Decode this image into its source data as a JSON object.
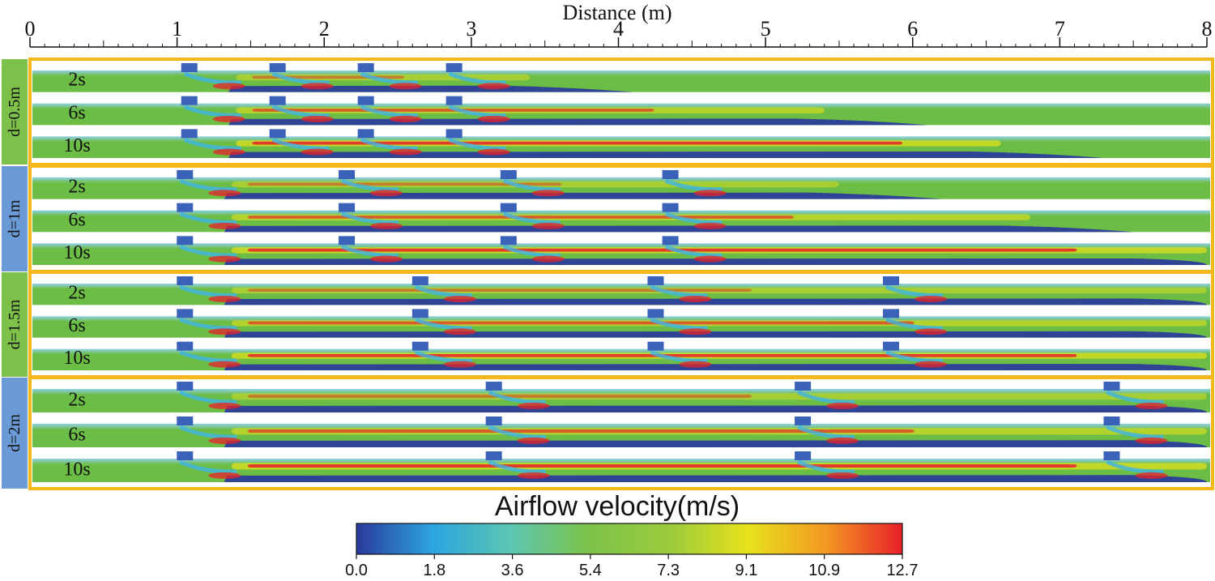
{
  "axis": {
    "title": "Distance (m)",
    "min": 0,
    "max": 8,
    "ticks": [
      "0",
      "1",
      "2",
      "3",
      "4",
      "5",
      "6",
      "7",
      "8"
    ]
  },
  "groups": [
    {
      "label": "d=0.5m",
      "spacing_m": 0.6,
      "color": "#7dc04a",
      "times": [
        "2s",
        "6s",
        "10s"
      ]
    },
    {
      "label": "d=1m",
      "spacing_m": 1.1,
      "color": "#6b9bd6",
      "times": [
        "2s",
        "6s",
        "10s"
      ]
    },
    {
      "label": "d=1.5m",
      "spacing_m": 1.6,
      "color": "#7dc04a",
      "times": [
        "2s",
        "6s",
        "10s"
      ]
    },
    {
      "label": "d=2m",
      "spacing_m": 2.1,
      "color": "#6b9bd6",
      "times": [
        "2s",
        "6s",
        "10s"
      ]
    }
  ],
  "obstacle_positions_m": [
    [
      1.05,
      1.65,
      2.25,
      2.85
    ],
    [
      1.02,
      2.12,
      3.22,
      4.32
    ],
    [
      1.02,
      2.62,
      4.22,
      5.82
    ],
    [
      1.02,
      3.12,
      5.22,
      7.32
    ]
  ],
  "jet_reach_m": [
    [
      3.4,
      5.4,
      6.6
    ],
    [
      5.5,
      6.8,
      8.0
    ],
    [
      8.0,
      8.0,
      8.0
    ],
    [
      8.0,
      8.0,
      8.0
    ]
  ],
  "colorbar": {
    "title": "Airflow velocity(m/s)",
    "min": 0.0,
    "max": 12.7,
    "ticks": [
      "0.0",
      "1.8",
      "3.6",
      "5.4",
      "7.3",
      "9.1",
      "10.9",
      "12.7"
    ],
    "stops": [
      {
        "value": 0.0,
        "color": "#2a3a9c"
      },
      {
        "value": 1.8,
        "color": "#2da6e0"
      },
      {
        "value": 3.6,
        "color": "#5cc6b0"
      },
      {
        "value": 5.4,
        "color": "#7cc24a"
      },
      {
        "value": 7.3,
        "color": "#9ccb3c"
      },
      {
        "value": 9.1,
        "color": "#e6e21c"
      },
      {
        "value": 10.9,
        "color": "#f39a22"
      },
      {
        "value": 12.7,
        "color": "#e8202a"
      }
    ]
  },
  "colors": {
    "frame": "#f6b71c",
    "base_flow": "#6cbd45",
    "low": "#2a3a9c",
    "mid": "#e6e21c",
    "high": "#e8202a",
    "obstacle": "#3a62b8"
  }
}
